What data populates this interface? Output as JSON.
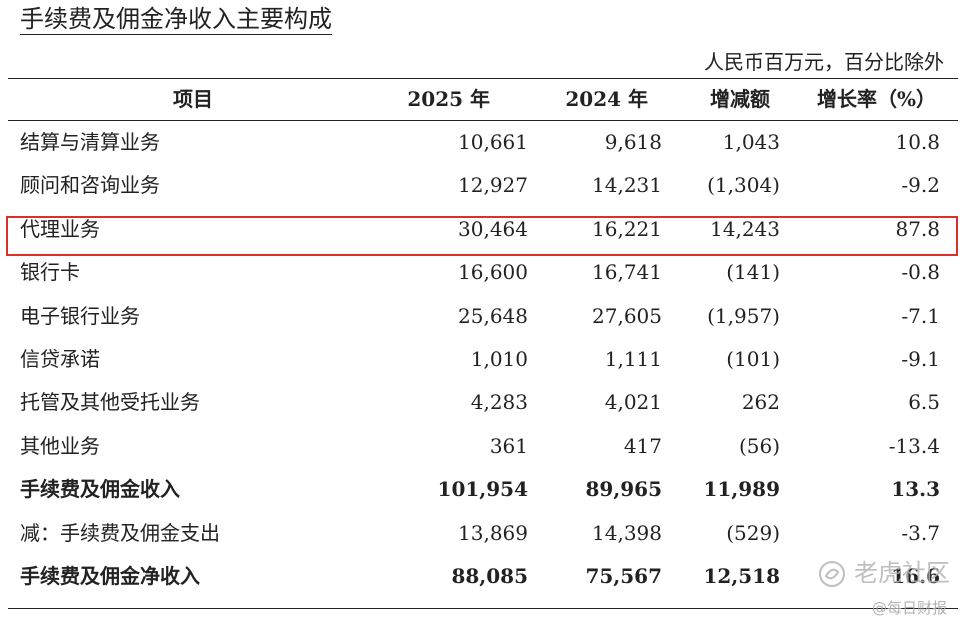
{
  "title": "手续费及佣金净收入主要构成",
  "unit_note": "人民币百万元，百分比除外",
  "columns": [
    "项目",
    "2025 年",
    "2024 年",
    "增减额",
    "增长率（%）"
  ],
  "rows": [
    {
      "label": "结算与清算业务",
      "y2025": "10,661",
      "y2024": "9,618",
      "change": "1,043",
      "rate": "10.8",
      "bold": false
    },
    {
      "label": "顾问和咨询业务",
      "y2025": "12,927",
      "y2024": "14,231",
      "change": "(1,304)",
      "rate": "-9.2",
      "bold": false
    },
    {
      "label": "代理业务",
      "y2025": "30,464",
      "y2024": "16,221",
      "change": "14,243",
      "rate": "87.8",
      "bold": false,
      "highlighted": true
    },
    {
      "label": "银行卡",
      "y2025": "16,600",
      "y2024": "16,741",
      "change": "(141)",
      "rate": "-0.8",
      "bold": false
    },
    {
      "label": "电子银行业务",
      "y2025": "25,648",
      "y2024": "27,605",
      "change": "(1,957)",
      "rate": "-7.1",
      "bold": false
    },
    {
      "label": "信贷承诺",
      "y2025": "1,010",
      "y2024": "1,111",
      "change": "(101)",
      "rate": "-9.1",
      "bold": false
    },
    {
      "label": "托管及其他受托业务",
      "y2025": "4,283",
      "y2024": "4,021",
      "change": "262",
      "rate": "6.5",
      "bold": false
    },
    {
      "label": "其他业务",
      "y2025": "361",
      "y2024": "417",
      "change": "(56)",
      "rate": "-13.4",
      "bold": false
    },
    {
      "label": "手续费及佣金收入",
      "y2025": "101,954",
      "y2024": "89,965",
      "change": "11,989",
      "rate": "13.3",
      "bold": true
    },
    {
      "label": "减：手续费及佣金支出",
      "y2025": "13,869",
      "y2024": "14,398",
      "change": "(529)",
      "rate": "-3.7",
      "bold": false
    },
    {
      "label": "手续费及佣金净收入",
      "y2025": "88,085",
      "y2024": "75,567",
      "change": "12,518",
      "rate": "16.6",
      "bold": true
    }
  ],
  "watermark": {
    "main": "老虎社区",
    "sub": "@每日财报"
  },
  "colors": {
    "highlight_border": "#d9302a",
    "text": "#222222"
  }
}
